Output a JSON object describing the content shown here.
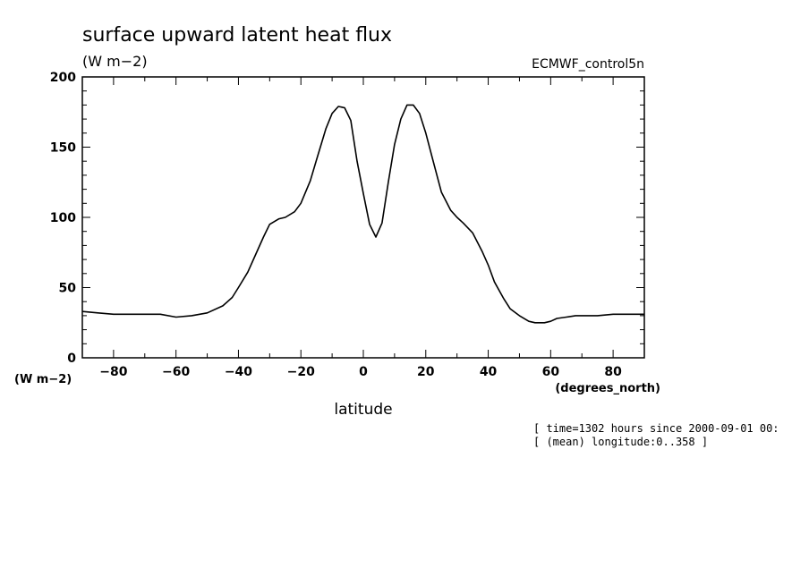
{
  "chart_data": {
    "type": "line",
    "title": "surface upward latent heat flux",
    "units": "(W m−2)",
    "source": "ECMWF_control5n",
    "ylabel": "(W m−2)",
    "xlabel": "latitude",
    "xunits": "(degrees_north)",
    "xlim": [
      -90,
      90
    ],
    "ylim": [
      0,
      200
    ],
    "xticks": [
      "−80",
      "−60",
      "−40",
      "−20",
      "0",
      "20",
      "40",
      "60",
      "80"
    ],
    "yticks": [
      "0",
      "50",
      "100",
      "150",
      "200"
    ],
    "xtick_values": [
      -80,
      -60,
      -40,
      -20,
      0,
      20,
      40,
      60,
      80
    ],
    "ytick_values": [
      0,
      50,
      100,
      150,
      200
    ],
    "grid": false,
    "legend": "none",
    "notes": [
      "[ time=1302 hours since 2000-09-01 00:",
      "[ (mean) longitude:0..358 ]"
    ],
    "series": [
      {
        "x": [
          -90,
          -85,
          -80,
          -75,
          -70,
          -65,
          -60,
          -55,
          -50,
          -45,
          -42,
          -40,
          -37,
          -35,
          -32,
          -30,
          -27,
          -25,
          -22,
          -20,
          -17,
          -15,
          -12,
          -10,
          -8,
          -6,
          -4,
          -2,
          0,
          2,
          4,
          6,
          8,
          10,
          12,
          14,
          16,
          18,
          20,
          22,
          25,
          28,
          30,
          32,
          35,
          38,
          40,
          42,
          45,
          47,
          50,
          53,
          55,
          58,
          60,
          62,
          65,
          68,
          70,
          75,
          80,
          85,
          90
        ],
        "y": [
          33,
          32,
          31,
          31,
          31,
          31,
          29,
          30,
          32,
          37,
          43,
          50,
          61,
          71,
          86,
          95,
          99,
          100,
          104,
          110,
          126,
          141,
          163,
          174,
          179,
          178,
          169,
          140,
          117,
          95,
          86,
          96,
          125,
          152,
          170,
          180,
          180,
          174,
          160,
          143,
          118,
          105,
          100,
          96,
          89,
          76,
          66,
          54,
          42,
          35,
          30,
          26,
          25,
          25,
          26,
          28,
          29,
          30,
          30,
          30,
          31,
          31,
          31
        ]
      }
    ]
  }
}
